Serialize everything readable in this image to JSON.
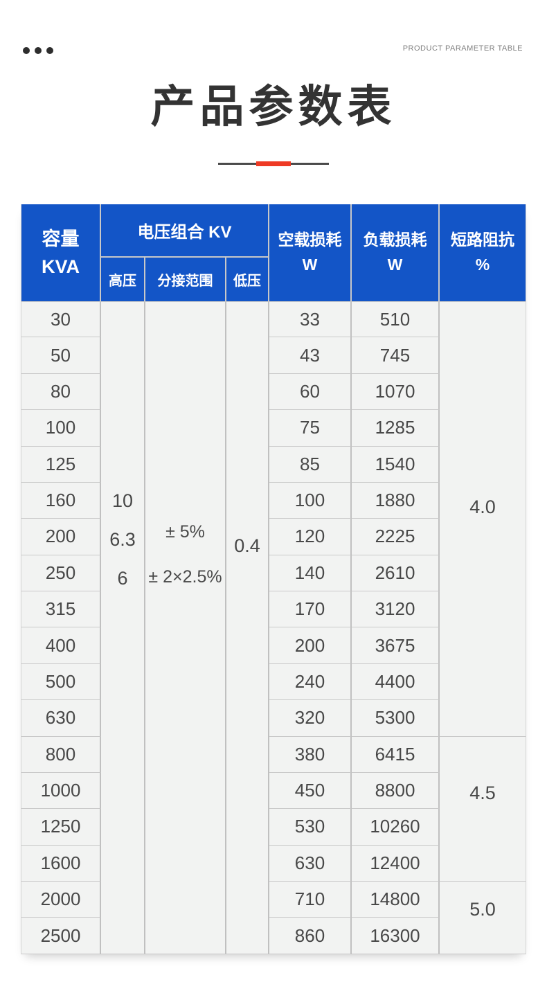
{
  "page_header": {
    "top_right_label": "PRODUCT PARAMETER TABLE"
  },
  "title_section": {
    "title": "产品参数表"
  },
  "table": {
    "header": {
      "capacity_line1": "容量",
      "capacity_line2": "KVA",
      "voltage_group": "电压组合 KV",
      "high_voltage": "高压",
      "tap_range": "分接范围",
      "low_voltage": "低压",
      "no_load_line1": "空载损耗",
      "no_load_line2": "W",
      "load_line1": "负载损耗",
      "load_line2": "W",
      "impedance_line1": "短路阻抗",
      "impedance_line2": "%"
    },
    "body": {
      "capacity_kva": [
        "30",
        "50",
        "80",
        "100",
        "125",
        "160",
        "200",
        "250",
        "315",
        "400",
        "500",
        "630",
        "800",
        "1000",
        "1250",
        "1600",
        "2000",
        "2500"
      ],
      "no_load_loss_w": [
        "33",
        "43",
        "60",
        "75",
        "85",
        "100",
        "120",
        "140",
        "170",
        "200",
        "240",
        "320",
        "380",
        "450",
        "530",
        "630",
        "710",
        "860"
      ],
      "load_loss_w": [
        "510",
        "745",
        "1070",
        "1285",
        "1540",
        "1880",
        "2225",
        "2610",
        "3120",
        "3675",
        "4400",
        "5300",
        "6415",
        "8800",
        "10260",
        "12400",
        "14800",
        "16300"
      ],
      "high_voltage_kv": [
        "10",
        "6.3",
        "6"
      ],
      "tap_range_values": [
        "± 5%",
        "± 2×2.5%"
      ],
      "low_voltage_kv": "0.4",
      "impedance_groups": [
        {
          "value": "4.0",
          "row_span": 12
        },
        {
          "value": "4.5",
          "row_span": 4
        },
        {
          "value": "5.0",
          "row_span": 2
        }
      ]
    },
    "colors": {
      "header_bg": "#1355c7",
      "header_text": "#ffffff",
      "cell_bg": "#f2f3f2",
      "grid_line": "#c6c6c6",
      "body_text": "#484848",
      "accent_red": "#ee3a24",
      "title_text": "#333333"
    }
  }
}
